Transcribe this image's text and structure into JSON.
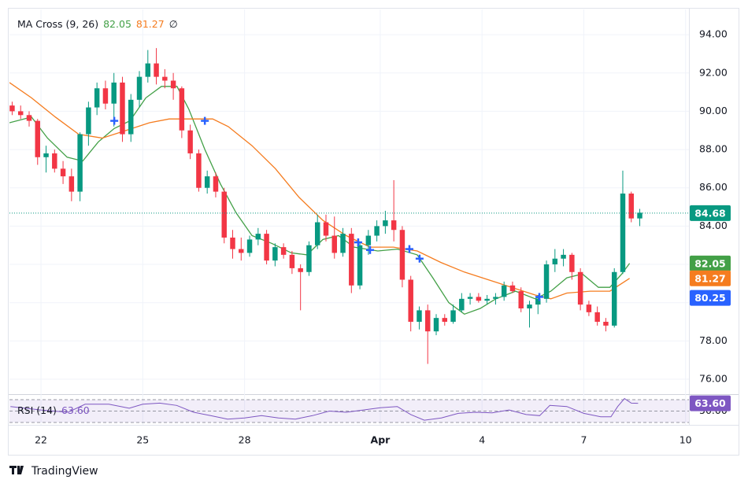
{
  "chart_data": {
    "type": "candlestick",
    "title": "MA Cross (9, 26)",
    "legend_symbol": "∅",
    "up_color": "#089981",
    "down_color": "#f23645",
    "xlim": [
      21.07,
      41.1
    ],
    "xticks": [
      22,
      25,
      28,
      {
        "value": 32,
        "label": "Apr"
      },
      {
        "value": 35,
        "label": "4"
      },
      {
        "value": 38,
        "label": "7"
      },
      {
        "value": 41,
        "label": "10"
      }
    ],
    "ylim": [
      75.26,
      95.32
    ],
    "yticks": [
      {
        "value": 76,
        "label": "76.00"
      },
      {
        "value": 78,
        "label": "78.00"
      },
      {
        "value": 80,
        "label": "80.00"
      },
      {
        "value": 82,
        "label": "82.00"
      },
      {
        "value": 84,
        "label": "84.00"
      },
      {
        "value": 86,
        "label": "86.00"
      },
      {
        "value": 88,
        "label": "88.00"
      },
      {
        "value": 90,
        "label": "90.00"
      },
      {
        "value": 92,
        "label": "92.00"
      },
      {
        "value": 94,
        "label": "94.00"
      }
    ],
    "grid": true,
    "candles": {
      "x": [
        21.15,
        21.4,
        21.65,
        21.9,
        22.15,
        22.4,
        22.65,
        22.9,
        23.15,
        23.4,
        23.65,
        23.9,
        24.15,
        24.4,
        24.65,
        24.9,
        25.15,
        25.4,
        25.65,
        25.9,
        26.15,
        26.4,
        26.65,
        26.9,
        27.15,
        27.4,
        27.65,
        27.9,
        28.15,
        28.4,
        28.65,
        28.9,
        29.15,
        29.4,
        29.65,
        29.9,
        30.15,
        30.4,
        30.65,
        30.9,
        31.15,
        31.4,
        31.65,
        31.9,
        32.15,
        32.4,
        32.65,
        32.9,
        33.15,
        33.4,
        33.65,
        33.9,
        34.15,
        34.4,
        34.65,
        34.9,
        35.15,
        35.4,
        35.65,
        35.9,
        36.15,
        36.4,
        36.65,
        36.9,
        37.15,
        37.4,
        37.65,
        37.9,
        38.15,
        38.4,
        38.65,
        38.9,
        39.15,
        39.4,
        39.65
      ],
      "ohlc": [
        [
          90.3,
          90.5,
          89.8,
          90.0
        ],
        [
          90.0,
          90.3,
          89.6,
          89.8
        ],
        [
          89.8,
          90.0,
          89.2,
          89.5
        ],
        [
          89.5,
          89.6,
          87.2,
          87.6
        ],
        [
          87.6,
          88.2,
          86.8,
          87.8
        ],
        [
          87.8,
          88.0,
          86.8,
          87.0
        ],
        [
          87.0,
          87.4,
          86.2,
          86.6
        ],
        [
          86.6,
          87.0,
          85.3,
          85.8
        ],
        [
          85.8,
          88.9,
          85.3,
          88.8
        ],
        [
          88.8,
          90.5,
          88.2,
          90.2
        ],
        [
          90.2,
          91.5,
          89.8,
          91.2
        ],
        [
          91.2,
          91.6,
          90.1,
          90.4
        ],
        [
          90.4,
          92.0,
          89.2,
          91.5
        ],
        [
          91.5,
          91.8,
          88.4,
          88.8
        ],
        [
          88.8,
          90.9,
          88.4,
          90.6
        ],
        [
          90.6,
          92.1,
          90.2,
          91.8
        ],
        [
          91.8,
          93.2,
          91.5,
          92.5
        ],
        [
          92.5,
          93.3,
          91.4,
          91.8
        ],
        [
          91.8,
          92.2,
          91.2,
          91.6
        ],
        [
          91.6,
          92.0,
          90.6,
          91.2
        ],
        [
          91.2,
          91.3,
          88.6,
          89.0
        ],
        [
          89.0,
          89.3,
          87.5,
          87.8
        ],
        [
          87.8,
          88.0,
          85.8,
          86.0
        ],
        [
          86.0,
          86.9,
          85.7,
          86.6
        ],
        [
          86.6,
          86.8,
          85.5,
          85.8
        ],
        [
          85.8,
          86.0,
          83.1,
          83.4
        ],
        [
          83.4,
          83.8,
          82.3,
          82.8
        ],
        [
          82.8,
          83.4,
          82.2,
          82.6
        ],
        [
          82.6,
          83.5,
          82.4,
          83.3
        ],
        [
          83.3,
          83.9,
          83.0,
          83.6
        ],
        [
          83.6,
          83.8,
          82.0,
          82.2
        ],
        [
          82.2,
          83.1,
          81.9,
          82.9
        ],
        [
          82.9,
          83.1,
          82.3,
          82.5
        ],
        [
          82.5,
          82.7,
          81.5,
          81.8
        ],
        [
          81.8,
          82.0,
          79.6,
          81.6
        ],
        [
          81.6,
          83.2,
          81.4,
          83.0
        ],
        [
          83.0,
          84.6,
          82.8,
          84.2
        ],
        [
          84.2,
          84.6,
          83.2,
          83.5
        ],
        [
          83.5,
          84.5,
          82.3,
          82.6
        ],
        [
          82.6,
          83.9,
          82.4,
          83.6
        ],
        [
          83.6,
          83.9,
          80.5,
          80.9
        ],
        [
          80.9,
          83.2,
          80.7,
          83.0
        ],
        [
          83.0,
          83.8,
          82.5,
          83.5
        ],
        [
          83.5,
          84.3,
          83.2,
          84.0
        ],
        [
          84.0,
          84.8,
          83.6,
          84.3
        ],
        [
          84.3,
          86.4,
          83.2,
          83.8
        ],
        [
          83.8,
          84.0,
          80.8,
          81.2
        ],
        [
          81.2,
          81.4,
          78.5,
          79.0
        ],
        [
          79.0,
          79.8,
          78.6,
          79.6
        ],
        [
          79.6,
          79.9,
          76.8,
          78.5
        ],
        [
          78.5,
          79.4,
          78.3,
          79.2
        ],
        [
          79.2,
          79.4,
          78.8,
          79.0
        ],
        [
          79.0,
          79.9,
          78.9,
          79.6
        ],
        [
          79.6,
          80.5,
          79.5,
          80.2
        ],
        [
          80.2,
          80.5,
          79.9,
          80.3
        ],
        [
          80.3,
          80.5,
          80.0,
          80.1
        ],
        [
          80.1,
          80.4,
          79.9,
          80.2
        ],
        [
          80.2,
          80.5,
          79.9,
          80.3
        ],
        [
          80.3,
          81.1,
          80.1,
          80.9
        ],
        [
          80.9,
          81.1,
          80.5,
          80.6
        ],
        [
          80.6,
          80.8,
          79.5,
          79.7
        ],
        [
          79.7,
          80.1,
          78.7,
          79.9
        ],
        [
          79.9,
          80.4,
          79.4,
          80.2
        ],
        [
          80.2,
          82.2,
          80.0,
          82.0
        ],
        [
          82.0,
          82.8,
          81.6,
          82.3
        ],
        [
          82.3,
          82.8,
          81.9,
          82.5
        ],
        [
          82.5,
          82.6,
          81.2,
          81.6
        ],
        [
          81.6,
          81.8,
          79.6,
          79.9
        ],
        [
          79.9,
          80.1,
          79.3,
          79.5
        ],
        [
          79.5,
          79.8,
          78.8,
          79.0
        ],
        [
          79.0,
          79.2,
          78.5,
          78.8
        ],
        [
          78.8,
          81.8,
          78.7,
          81.6
        ],
        [
          81.6,
          86.9,
          81.5,
          85.7
        ],
        [
          85.7,
          85.8,
          84.2,
          84.4
        ],
        [
          84.4,
          84.9,
          84.0,
          84.7
        ]
      ]
    },
    "series": [
      {
        "color": "#43a047",
        "legend_value": 82.05,
        "x": [
          21.07,
          21.72,
          22.19,
          22.77,
          23.23,
          23.69,
          24.16,
          24.62,
          25.09,
          25.55,
          26.01,
          26.36,
          26.83,
          27.29,
          27.75,
          28.22,
          28.8,
          29.38,
          29.84,
          30.31,
          30.77,
          31.23,
          31.93,
          32.51,
          33.09,
          33.55,
          34.02,
          34.48,
          34.95,
          35.41,
          35.99,
          36.57,
          37.03,
          37.5,
          37.96,
          38.43,
          38.77,
          39.12,
          39.35
        ],
        "values": [
          89.4,
          89.7,
          88.6,
          87.6,
          87.4,
          88.4,
          89.1,
          89.5,
          90.7,
          91.3,
          91.3,
          90.1,
          88.0,
          86.2,
          84.7,
          83.5,
          83.1,
          82.6,
          82.5,
          83.3,
          83.5,
          82.9,
          82.7,
          82.8,
          82.5,
          81.3,
          80.0,
          79.4,
          79.7,
          80.2,
          80.6,
          80.2,
          80.6,
          81.3,
          81.5,
          80.8,
          80.8,
          81.5,
          82.05
        ]
      },
      {
        "color": "#f57c1f",
        "legend_value": 81.27,
        "x": [
          21.07,
          21.72,
          22.42,
          23.11,
          23.81,
          24.51,
          25.2,
          25.78,
          26.36,
          27.06,
          27.52,
          28.22,
          28.91,
          29.61,
          30.31,
          31.0,
          31.7,
          32.39,
          33.09,
          33.79,
          34.48,
          35.18,
          35.87,
          36.57,
          37.03,
          37.5,
          38.19,
          38.77,
          39.35
        ],
        "values": [
          91.5,
          90.7,
          89.7,
          88.8,
          88.6,
          89.0,
          89.4,
          89.6,
          89.6,
          89.6,
          89.2,
          88.2,
          87.0,
          85.5,
          84.3,
          83.5,
          82.9,
          82.9,
          82.7,
          82.1,
          81.6,
          81.2,
          80.8,
          80.4,
          80.2,
          80.5,
          80.6,
          80.6,
          81.27
        ]
      }
    ],
    "cross_markers": {
      "color": "#2962ff",
      "x": [
        24.16,
        26.83,
        31.35,
        31.7,
        32.86,
        33.16,
        36.69
      ],
      "values": [
        89.5,
        89.5,
        83.15,
        82.75,
        82.8,
        82.3,
        80.3
      ]
    },
    "last_price": 84.68,
    "last_price_color": "#089981",
    "cross_level": 80.25,
    "rsi": {
      "title": "RSI (14)",
      "value": 63.6,
      "value_label": "63.60",
      "color": "#7e57c2",
      "ylim": [
        25.9,
        76.9
      ],
      "levels": [
        70,
        50,
        30
      ],
      "yticks": [
        {
          "value": 50,
          "label": "50.00"
        }
      ],
      "x": [
        21.1,
        22.0,
        22.8,
        23.3,
        24.0,
        24.6,
        25.0,
        25.5,
        26.0,
        26.5,
        27.0,
        27.5,
        28.0,
        28.5,
        29.0,
        29.5,
        30.0,
        30.5,
        31.0,
        31.5,
        32.0,
        32.5,
        32.9,
        33.3,
        33.8,
        34.3,
        34.8,
        35.3,
        35.8,
        36.3,
        36.7,
        37.0,
        37.5,
        38.0,
        38.5,
        38.8,
        39.0,
        39.2,
        39.4,
        39.6
      ],
      "values": [
        58,
        52,
        48,
        62,
        62,
        55,
        62,
        64,
        60,
        48,
        42,
        36,
        38,
        42,
        38,
        36,
        42,
        50,
        48,
        52,
        56,
        58,
        44,
        34,
        38,
        46,
        48,
        47,
        52,
        44,
        42,
        60,
        58,
        46,
        40,
        40,
        58,
        72,
        64,
        63.6
      ]
    }
  },
  "branding": "TradingView"
}
